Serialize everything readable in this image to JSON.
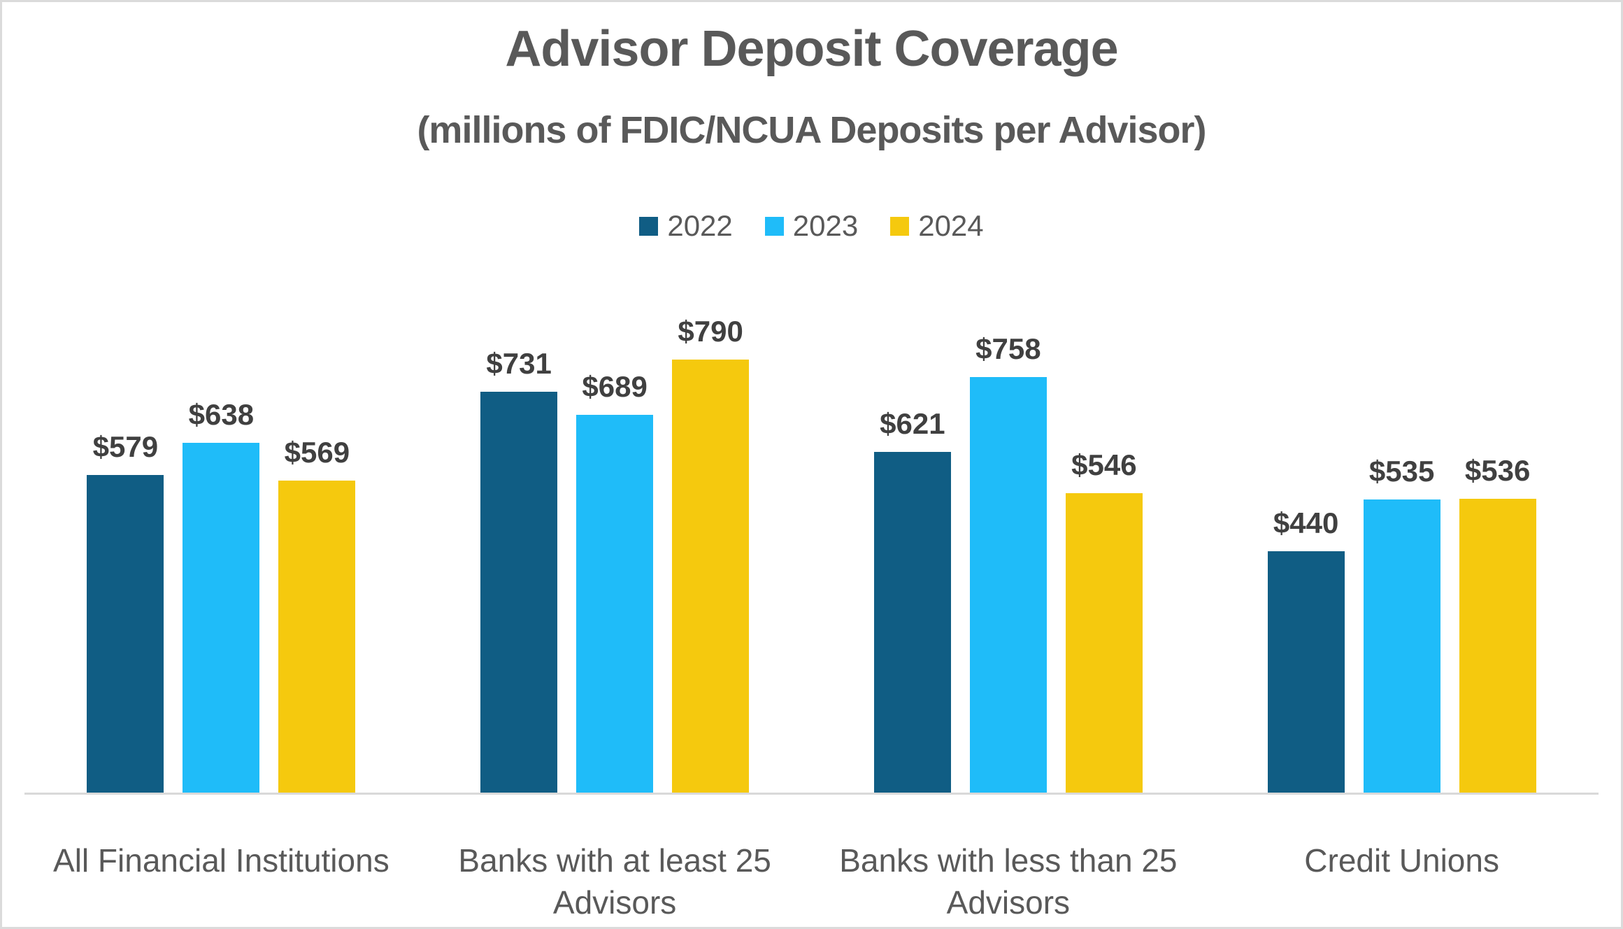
{
  "chart_data": {
    "type": "bar",
    "title": "Advisor Deposit Coverage",
    "subtitle": "(millions of FDIC/NCUA Deposits per Advisor)",
    "categories": [
      "All Financial Institutions",
      "Banks with at least 25 Advisors",
      "Banks with less than 25 Advisors",
      "Credit Unions"
    ],
    "series": [
      {
        "name": "2022",
        "color": "#105D84",
        "values": [
          579,
          731,
          621,
          440
        ],
        "labels": [
          "$579",
          "$731",
          "$621",
          "$440"
        ]
      },
      {
        "name": "2023",
        "color": "#1FBCF9",
        "values": [
          638,
          689,
          758,
          535
        ],
        "labels": [
          "$638",
          "$689",
          "$758",
          "$535"
        ]
      },
      {
        "name": "2024",
        "color": "#F5C90E",
        "values": [
          569,
          790,
          546,
          536
        ],
        "labels": [
          "$569",
          "$790",
          "$546",
          "$536"
        ]
      }
    ],
    "value_prefix": "$",
    "ylim": [
      0,
      900
    ],
    "grid": false,
    "y_axis_visible": false,
    "data_labels": true,
    "legend_position": "top"
  },
  "colors": {
    "background": "#FFFFFF",
    "frame_border": "#DBDBDB",
    "title_color": "#595959",
    "label_color": "#595959",
    "data_label_color": "#404040",
    "axis_line": "#D9D9D9"
  }
}
